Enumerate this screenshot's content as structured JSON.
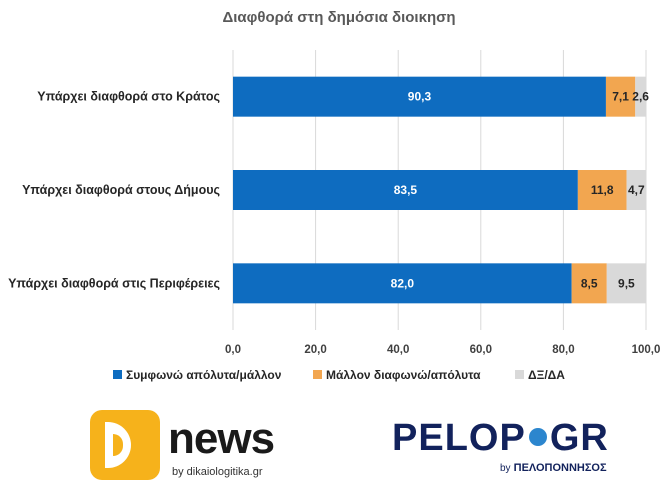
{
  "chart_data": {
    "type": "bar",
    "orientation": "horizontal",
    "stacked": true,
    "title": "Διαφθορά στη δημόσια διοικηση",
    "categories": [
      "Υπάρχει διαφθορά στο Κράτος",
      "Υπάρχει διαφθορά στους Δήμους",
      "Υπάρχει διαφθορά στις Περιφέρειες"
    ],
    "series": [
      {
        "name": "Συμφωνώ απόλυτα/μάλλον",
        "color": "#0e6cc0",
        "label_color": "#ffffff",
        "values": [
          90.3,
          83.5,
          82.0
        ],
        "labels": [
          "90,3",
          "83,5",
          "82,0"
        ]
      },
      {
        "name": "Μάλλον διαφωνώ/απόλυτα",
        "color": "#f2a650",
        "label_color": "#262626",
        "values": [
          7.1,
          11.8,
          8.5
        ],
        "labels": [
          "7,1",
          "11,8",
          "8,5"
        ]
      },
      {
        "name": "ΔΞ/ΔΑ",
        "color": "#d9d9d9",
        "label_color": "#262626",
        "values": [
          2.6,
          4.7,
          9.5
        ],
        "labels": [
          "2,6",
          "4,7",
          "9,5"
        ]
      }
    ],
    "xlim": [
      0,
      100
    ],
    "x_ticks": [
      0,
      20,
      40,
      60,
      80,
      100
    ],
    "x_tick_labels": [
      "0,0",
      "20,0",
      "40,0",
      "60,0",
      "80,0",
      "100,0"
    ],
    "grid": "vertical",
    "grid_color": "#d9d9d9",
    "legend": "bottom"
  },
  "logos": {
    "dnews": {
      "word": "news",
      "sub": "by dikaiologitika.gr"
    },
    "pelop": {
      "part1": "PELOP",
      "part2": "GR",
      "sub_by": "by",
      "sub_name": "ΠΕΛΟΠΟΝΝΗΣΟΣ"
    }
  }
}
